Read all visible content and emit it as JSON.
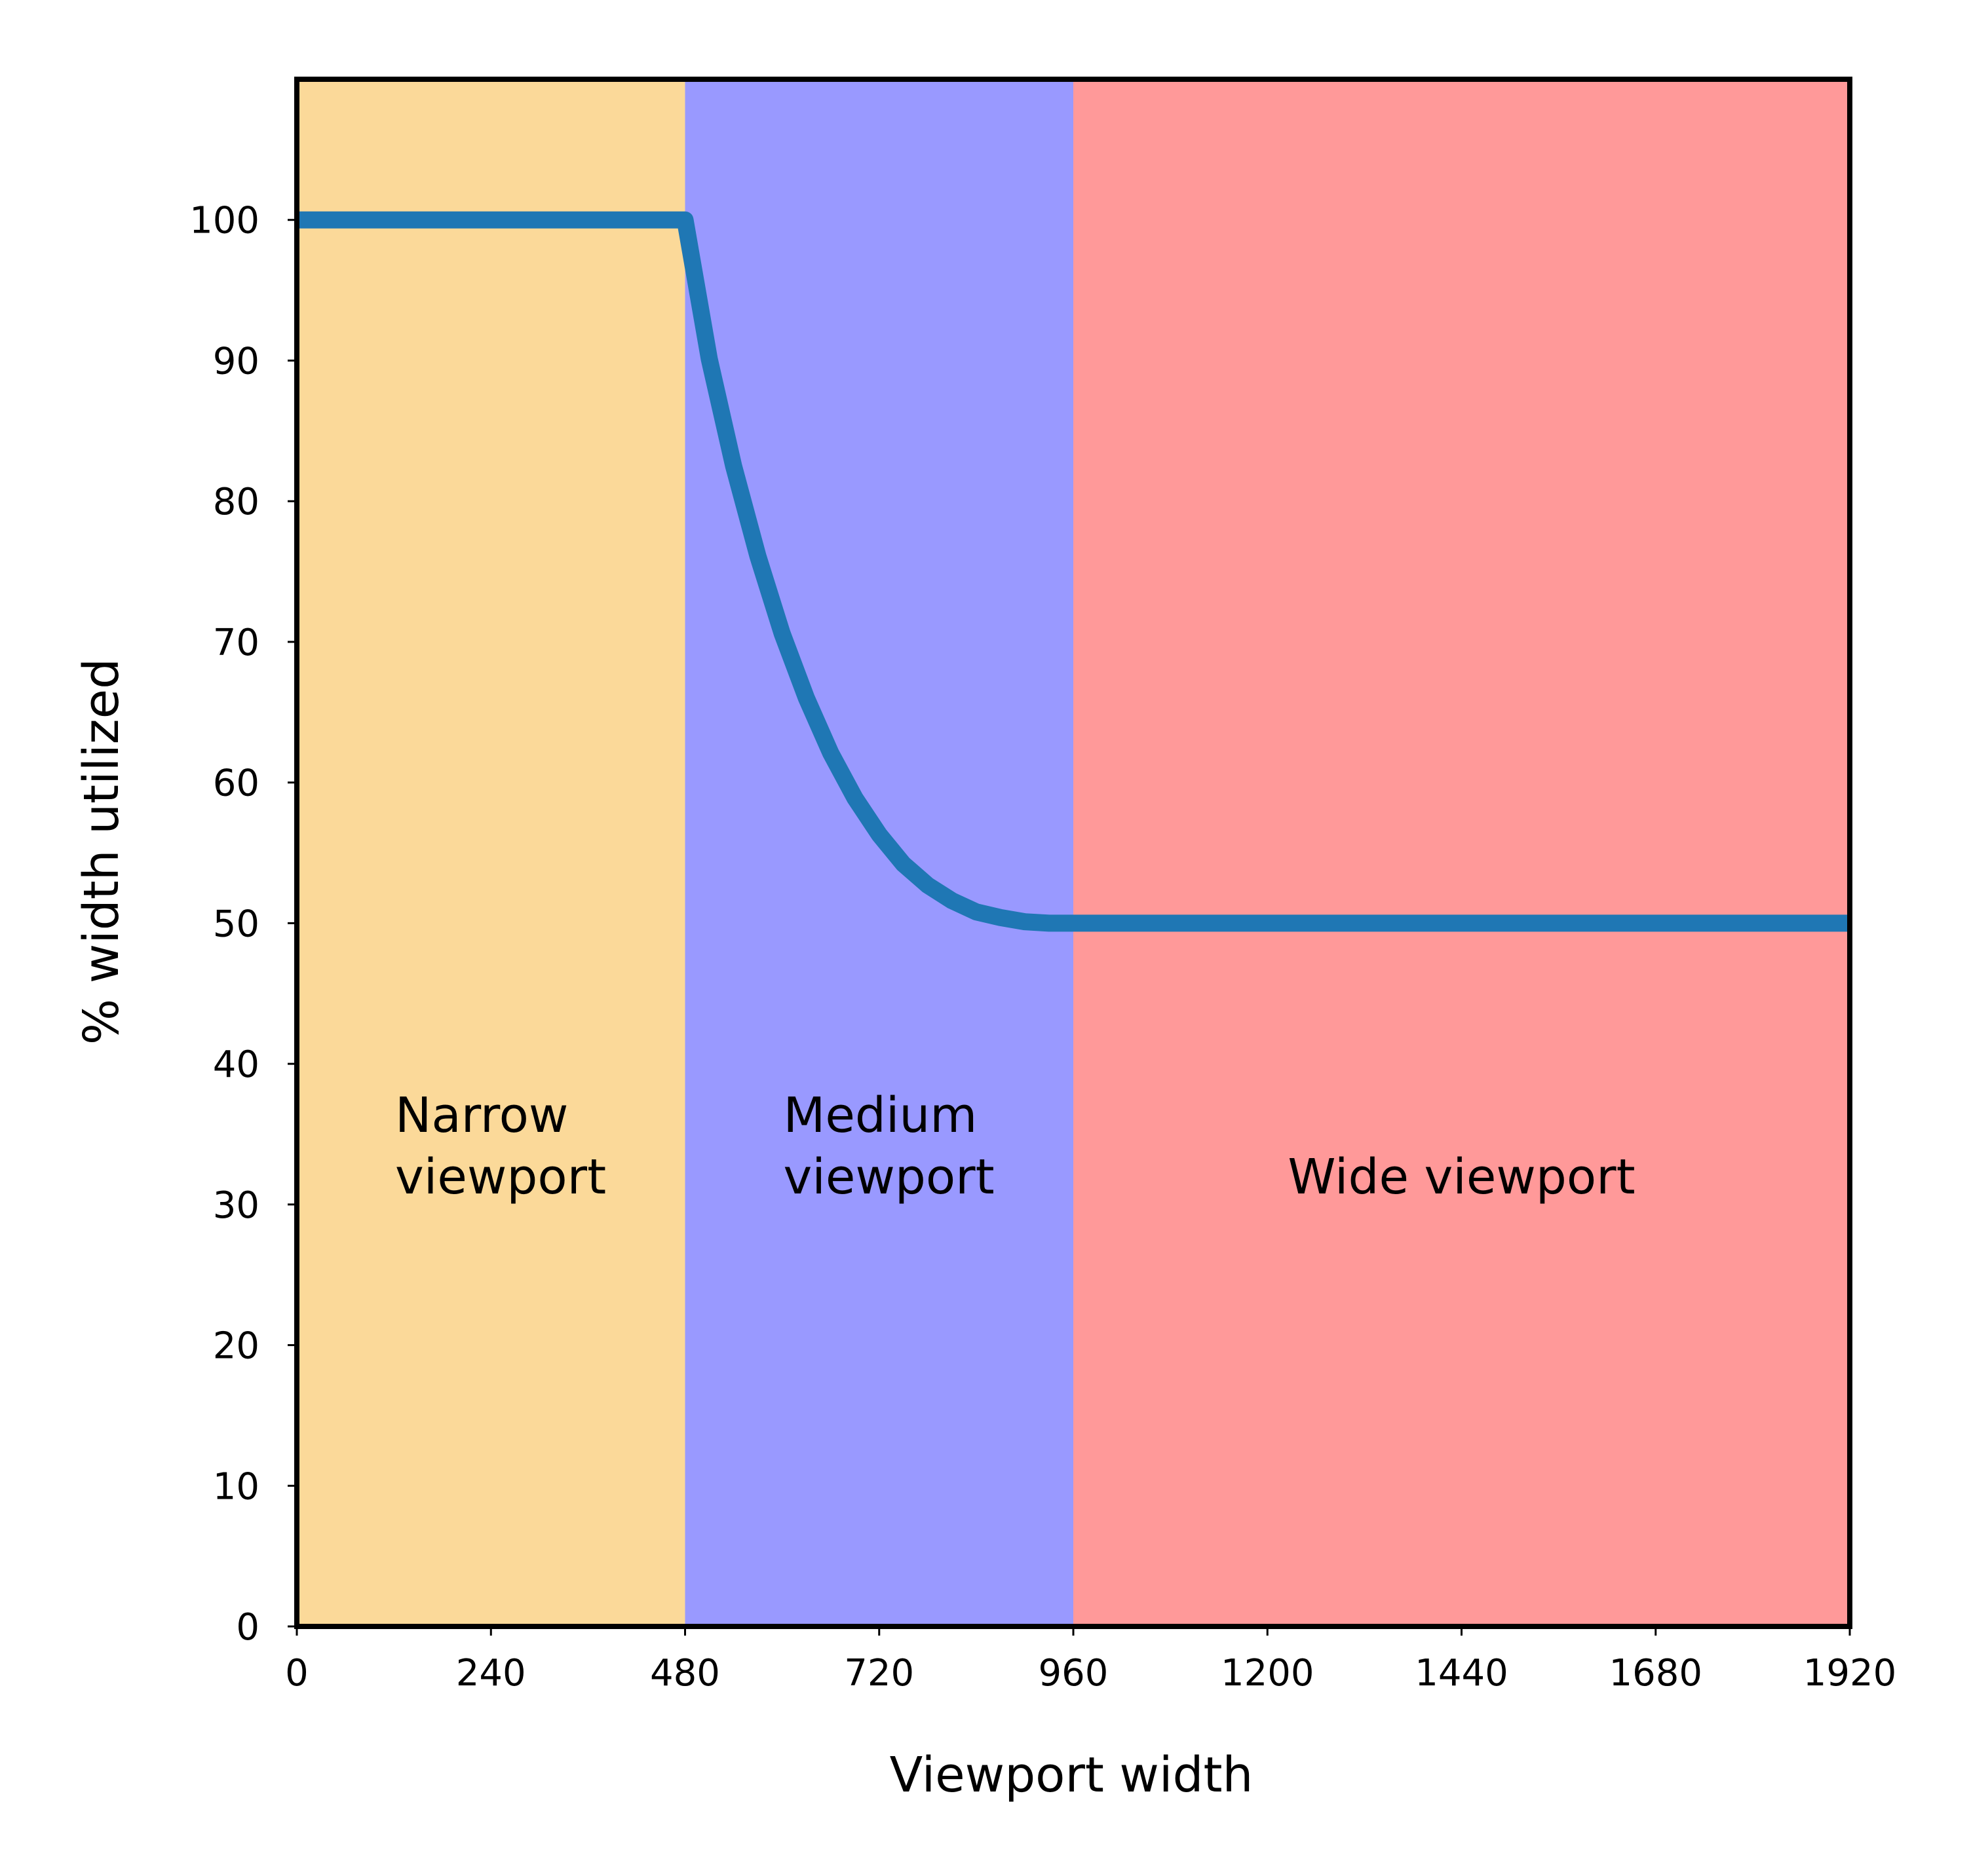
{
  "chart_data": {
    "type": "line",
    "title": "",
    "xlabel": "Viewport width",
    "ylabel": "% width utilized",
    "xlim": [
      0,
      1920
    ],
    "ylim": [
      0,
      110
    ],
    "x_ticks": [
      0,
      240,
      480,
      720,
      960,
      1200,
      1440,
      1680,
      1920
    ],
    "y_ticks": [
      0,
      10,
      20,
      30,
      40,
      50,
      60,
      70,
      80,
      90,
      100
    ],
    "grid": false,
    "regions": [
      {
        "label": [
          "Narrow",
          "viewport"
        ],
        "x_range": [
          0,
          480
        ],
        "color": "#FBD999"
      },
      {
        "label": [
          "Medium",
          "viewport"
        ],
        "x_range": [
          480,
          960
        ],
        "color": "#9999FF"
      },
      {
        "label": [
          "Wide viewport"
        ],
        "x_range": [
          960,
          1920
        ],
        "color": "#FF9999"
      }
    ],
    "series": [
      {
        "color": "#1F77B4",
        "x": [
          0,
          480,
          510,
          540,
          570,
          600,
          630,
          660,
          690,
          720,
          750,
          780,
          810,
          840,
          870,
          900,
          930,
          960,
          1920
        ],
        "y": [
          100,
          100,
          90.1,
          82.5,
          76.1,
          70.6,
          66.0,
          62.1,
          58.9,
          56.3,
          54.2,
          52.7,
          51.6,
          50.8,
          50.4,
          50.1,
          50.0,
          50,
          50
        ]
      }
    ]
  }
}
